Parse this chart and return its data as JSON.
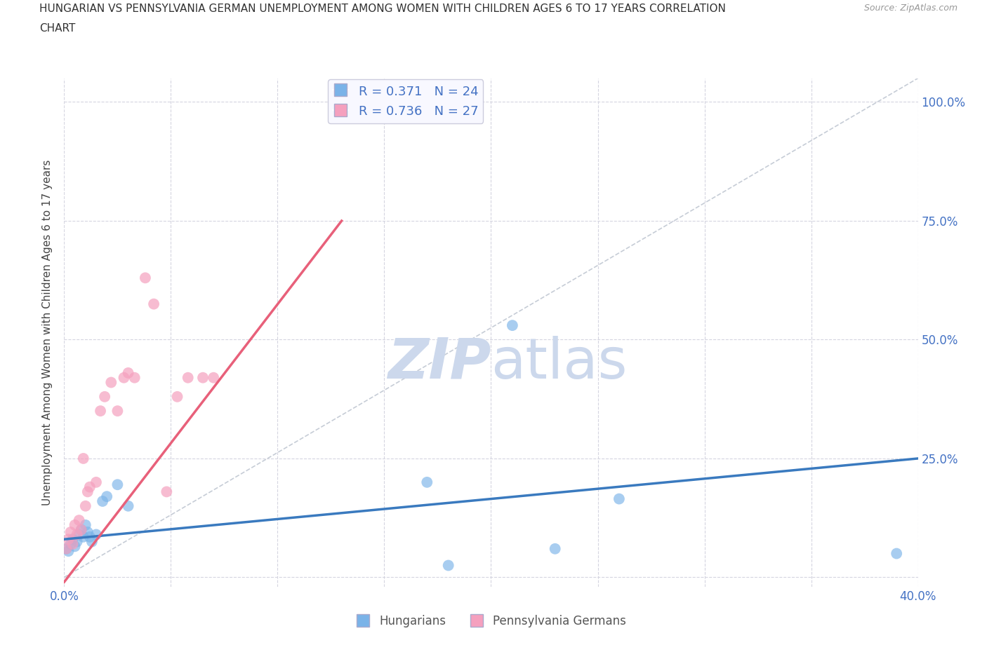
{
  "title_line1": "HUNGARIAN VS PENNSYLVANIA GERMAN UNEMPLOYMENT AMONG WOMEN WITH CHILDREN AGES 6 TO 17 YEARS CORRELATION",
  "title_line2": "CHART",
  "source": "Source: ZipAtlas.com",
  "ylabel": "Unemployment Among Women with Children Ages 6 to 17 years",
  "xlim": [
    0.0,
    0.4
  ],
  "ylim": [
    -0.02,
    1.05
  ],
  "R_hungarian": 0.371,
  "N_hungarian": 24,
  "R_pa_german": 0.736,
  "N_pa_german": 27,
  "hungarian_color": "#7ab3e8",
  "pa_german_color": "#f5a0be",
  "hungarian_line_color": "#3a7abf",
  "pa_german_line_color": "#e8607a",
  "diagonal_color": "#b8c0cc",
  "background_color": "#ffffff",
  "grid_color": "#d5d5e0",
  "watermark_color": "#ccd8ec",
  "hun_line_x0": 0.0,
  "hun_line_y0": 0.08,
  "hun_line_x1": 0.4,
  "hun_line_y1": 0.25,
  "pag_line_x0": 0.0,
  "pag_line_y0": -0.01,
  "pag_line_x1": 0.13,
  "pag_line_y1": 0.75,
  "hun_x": [
    0.001,
    0.002,
    0.003,
    0.004,
    0.005,
    0.006,
    0.007,
    0.008,
    0.009,
    0.01,
    0.011,
    0.012,
    0.013,
    0.015,
    0.018,
    0.02,
    0.025,
    0.03,
    0.17,
    0.18,
    0.21,
    0.23,
    0.26,
    0.39
  ],
  "hun_y": [
    0.06,
    0.055,
    0.07,
    0.08,
    0.065,
    0.075,
    0.09,
    0.1,
    0.085,
    0.11,
    0.095,
    0.085,
    0.075,
    0.09,
    0.16,
    0.17,
    0.195,
    0.15,
    0.2,
    0.025,
    0.53,
    0.06,
    0.165,
    0.05
  ],
  "pag_x": [
    0.001,
    0.002,
    0.003,
    0.004,
    0.005,
    0.006,
    0.007,
    0.008,
    0.009,
    0.01,
    0.011,
    0.012,
    0.015,
    0.017,
    0.019,
    0.022,
    0.025,
    0.028,
    0.03,
    0.033,
    0.038,
    0.042,
    0.048,
    0.053,
    0.058,
    0.065,
    0.07
  ],
  "pag_y": [
    0.06,
    0.08,
    0.095,
    0.07,
    0.11,
    0.09,
    0.12,
    0.1,
    0.25,
    0.15,
    0.18,
    0.19,
    0.2,
    0.35,
    0.38,
    0.41,
    0.35,
    0.42,
    0.43,
    0.42,
    0.63,
    0.575,
    0.18,
    0.38,
    0.42,
    0.42,
    0.42
  ]
}
